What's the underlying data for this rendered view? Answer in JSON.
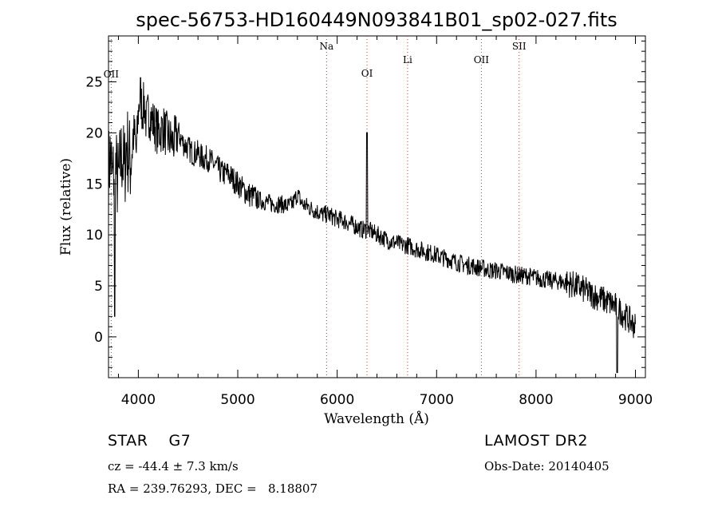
{
  "chart_data": {
    "type": "line",
    "title": "spec-56753-HD160449N093841B01_sp02-027.fits",
    "xlabel": "Wavelength (Å)",
    "ylabel": "Flux (relative)",
    "xlim": [
      3700,
      9100
    ],
    "ylim": [
      -4,
      29.5
    ],
    "xticks": [
      4000,
      5000,
      6000,
      7000,
      8000,
      9000
    ],
    "yticks": [
      0,
      5,
      10,
      15,
      20,
      25
    ],
    "grid": false,
    "line_color": "#000000",
    "marker_color": "#cc3333",
    "series": [
      {
        "x": [
          3700,
          3720,
          3740,
          3760,
          3780,
          3800,
          3820,
          3840,
          3860,
          3880,
          3900,
          3920,
          3940,
          3960,
          3980,
          4000,
          4020,
          4040,
          4060,
          4080,
          4100,
          4150,
          4200,
          4250,
          4300,
          4350,
          4400,
          4450,
          4500,
          4550,
          4600,
          4650,
          4700,
          4750,
          4800,
          4850,
          4900,
          4950,
          5000,
          5050,
          5100,
          5150,
          5200,
          5250,
          5300,
          5350,
          5400,
          5450,
          5500,
          5550,
          5600,
          5650,
          5700,
          5750,
          5800,
          5850,
          5900,
          5950,
          6000,
          6050,
          6100,
          6150,
          6200,
          6250,
          6300,
          6350,
          6400,
          6450,
          6500,
          6550,
          6600,
          6650,
          6700,
          6750,
          6800,
          6850,
          6900,
          6950,
          7000,
          7050,
          7100,
          7150,
          7200,
          7250,
          7300,
          7350,
          7400,
          7450,
          7500,
          7550,
          7600,
          7650,
          7700,
          7750,
          7800,
          7850,
          7900,
          7950,
          8000,
          8050,
          8100,
          8150,
          8200,
          8250,
          8300,
          8350,
          8400,
          8450,
          8500,
          8550,
          8600,
          8650,
          8700,
          8750,
          8800,
          8850,
          8900,
          8950,
          9000
        ],
        "y": [
          16,
          18,
          15,
          17,
          16,
          15,
          17,
          18,
          16,
          19,
          18,
          17,
          19,
          20,
          18,
          22,
          24,
          22,
          23,
          21,
          22,
          21,
          20,
          20.5,
          19.5,
          19,
          20,
          19,
          18.5,
          18,
          18,
          17.5,
          17.5,
          17,
          16.5,
          16,
          16,
          15.5,
          15,
          14.5,
          14,
          13.8,
          13.5,
          13.3,
          13.2,
          13,
          13,
          13,
          12.8,
          13,
          14,
          13,
          12.8,
          12.5,
          12.3,
          12,
          12,
          11.8,
          11.5,
          11.5,
          11.2,
          11,
          10.8,
          10.5,
          10.5,
          10.3,
          10,
          9.8,
          9.5,
          9.3,
          9.2,
          9,
          9,
          8.8,
          8.6,
          8.5,
          8.3,
          8.2,
          8,
          7.8,
          7.7,
          7.5,
          7.3,
          7.2,
          7,
          7,
          6.8,
          6.8,
          6.6,
          6.5,
          6.5,
          6.4,
          6.3,
          6.2,
          6.1,
          6,
          6,
          5.9,
          5.8,
          5.7,
          5.6,
          5.5,
          5.5,
          5.4,
          5.3,
          5.2,
          5,
          4.8,
          4.5,
          4.2,
          4,
          3.8,
          3.5,
          3.3,
          3,
          2.5,
          2,
          1.5,
          1
        ]
      }
    ],
    "line_markers": [
      {
        "label": "OII",
        "x": 3727
      },
      {
        "label": "Na",
        "x": 5893
      },
      {
        "label": "OI",
        "x": 6300
      },
      {
        "label": "Li",
        "x": 6708
      },
      {
        "label": "OII",
        "x": 7450
      },
      {
        "label": "SII",
        "x": 7830
      }
    ]
  },
  "info": {
    "class_line": "STAR    G7",
    "cz_line": "cz = -44.4 ± 7.3 km/s",
    "radec_line": "RA = 239.76293, DEC =   8.18807",
    "survey": "LAMOST DR2",
    "obs_date": "Obs-Date: 20140405"
  }
}
